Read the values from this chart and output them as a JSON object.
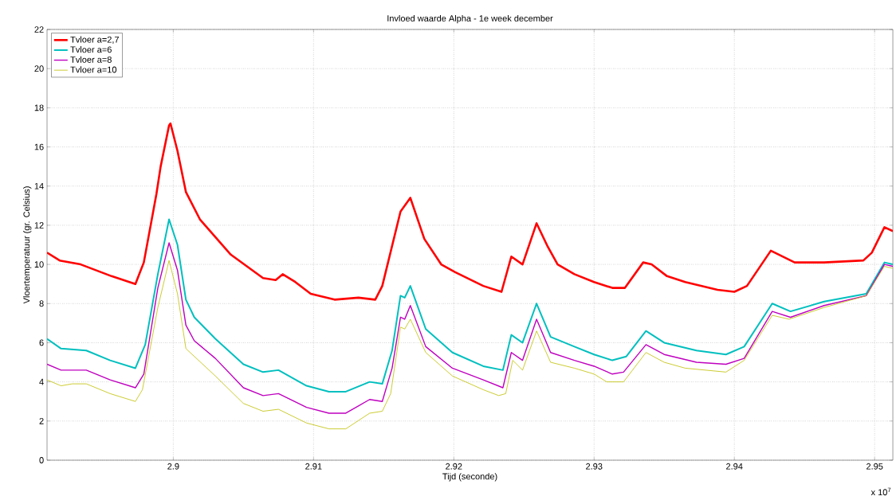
{
  "chart_data": {
    "type": "line",
    "title": "Invloed waarde Alpha - 1e week december",
    "xlabel": "Tijd (seconde)",
    "ylabel": "Vloertemperatuur (gr. Celsius)",
    "annotations": [
      "x 10$^{7}$"
    ],
    "xlim": [
      2.891,
      2.9513
    ],
    "ylim": [
      0,
      22
    ],
    "xticks": [
      2.9,
      2.91,
      2.92,
      2.93,
      2.94,
      2.95
    ],
    "yticks": [
      0,
      2,
      4,
      6,
      8,
      10,
      12,
      14,
      16,
      18,
      20,
      22
    ],
    "grid": true,
    "legend": "top left",
    "series": [
      {
        "name": "Tvloer a=2,7",
        "color": "#ff0000",
        "x": [
          2.891,
          2.8919,
          2.8934,
          2.8956,
          2.8973,
          2.8979,
          2.8988,
          2.8991,
          2.8997,
          2.8998,
          2.9003,
          2.9009,
          2.9019,
          2.9041,
          2.9064,
          2.9073,
          2.9078,
          2.9087,
          2.9098,
          2.9115,
          2.9132,
          2.9144,
          2.9149,
          2.9162,
          2.9169,
          2.9179,
          2.9191,
          2.9201,
          2.9221,
          2.9234,
          2.9241,
          2.9249,
          2.9259,
          2.9267,
          2.9274,
          2.9286,
          2.93,
          2.9313,
          2.9322,
          2.9335,
          2.9341,
          2.9352,
          2.9365,
          2.9388,
          2.94,
          2.9409,
          2.9426,
          2.9443,
          2.9464,
          2.9492,
          2.9498,
          2.9507,
          2.9513
        ],
        "values": [
          10.6,
          10.2,
          10.0,
          9.4,
          9.0,
          10.1,
          13.6,
          15.0,
          17.1,
          17.2,
          15.8,
          13.7,
          12.3,
          10.5,
          9.3,
          9.2,
          9.5,
          9.1,
          8.5,
          8.2,
          8.3,
          8.2,
          8.9,
          12.7,
          13.4,
          11.3,
          10.0,
          9.6,
          8.9,
          8.6,
          10.4,
          10.0,
          12.1,
          10.9,
          10.0,
          9.5,
          9.1,
          8.8,
          8.8,
          10.1,
          10.0,
          9.4,
          9.1,
          8.7,
          8.6,
          8.9,
          10.7,
          10.1,
          10.1,
          10.2,
          10.6,
          11.9,
          11.7
        ]
      },
      {
        "name": "Tvloer a=6",
        "color": "#00bfbf",
        "x": [
          2.891,
          2.892,
          2.8938,
          2.8955,
          2.8973,
          2.898,
          2.8989,
          2.8997,
          2.9003,
          2.9009,
          2.9015,
          2.903,
          2.905,
          2.9064,
          2.9075,
          2.9095,
          2.9111,
          2.9123,
          2.914,
          2.9149,
          2.9156,
          2.9162,
          2.9165,
          2.9169,
          2.918,
          2.9199,
          2.9221,
          2.9235,
          2.9241,
          2.9249,
          2.9259,
          2.9269,
          2.9286,
          2.93,
          2.9313,
          2.9323,
          2.9337,
          2.935,
          2.9373,
          2.9394,
          2.9407,
          2.9427,
          2.944,
          2.9464,
          2.9494,
          2.9507,
          2.9513
        ],
        "values": [
          6.2,
          5.7,
          5.6,
          5.1,
          4.7,
          5.9,
          9.5,
          12.3,
          11.0,
          8.2,
          7.3,
          6.2,
          4.9,
          4.5,
          4.6,
          3.8,
          3.5,
          3.5,
          4.0,
          3.9,
          5.6,
          8.4,
          8.3,
          8.9,
          6.7,
          5.5,
          4.8,
          4.6,
          6.4,
          6.0,
          8.0,
          6.3,
          5.8,
          5.4,
          5.1,
          5.3,
          6.6,
          6.0,
          5.6,
          5.4,
          5.8,
          8.0,
          7.6,
          8.1,
          8.5,
          10.1,
          10.0
        ]
      },
      {
        "name": "Tvloer a=8",
        "color": "#bf00bf",
        "x": [
          2.891,
          2.892,
          2.8938,
          2.8955,
          2.8973,
          2.8979,
          2.8989,
          2.8997,
          2.9003,
          2.9009,
          2.9015,
          2.903,
          2.905,
          2.9064,
          2.9075,
          2.9095,
          2.9111,
          2.9123,
          2.914,
          2.9149,
          2.9156,
          2.9162,
          2.9165,
          2.9169,
          2.918,
          2.9199,
          2.9221,
          2.9235,
          2.9241,
          2.9249,
          2.9259,
          2.9269,
          2.9286,
          2.93,
          2.9313,
          2.9321,
          2.9337,
          2.935,
          2.9373,
          2.9394,
          2.9407,
          2.9427,
          2.944,
          2.9464,
          2.9494,
          2.9507,
          2.9513
        ],
        "values": [
          4.9,
          4.6,
          4.6,
          4.1,
          3.7,
          4.4,
          8.8,
          11.1,
          9.7,
          6.9,
          6.1,
          5.2,
          3.7,
          3.3,
          3.4,
          2.7,
          2.4,
          2.4,
          3.1,
          3.0,
          4.7,
          7.3,
          7.2,
          7.9,
          5.8,
          4.7,
          4.1,
          3.7,
          5.5,
          5.1,
          7.2,
          5.5,
          5.1,
          4.8,
          4.4,
          4.5,
          5.9,
          5.4,
          5.0,
          4.9,
          5.2,
          7.6,
          7.3,
          7.9,
          8.4,
          10.0,
          9.9
        ]
      },
      {
        "name": "Tvloer a=10",
        "color": "#bfbf00",
        "x": [
          2.891,
          2.892,
          2.8928,
          2.8938,
          2.8955,
          2.8973,
          2.8978,
          2.8989,
          2.8997,
          2.9003,
          2.9009,
          2.903,
          2.905,
          2.9064,
          2.9075,
          2.9095,
          2.9111,
          2.9123,
          2.914,
          2.9149,
          2.9155,
          2.9162,
          2.9165,
          2.9169,
          2.918,
          2.9199,
          2.9221,
          2.9232,
          2.9237,
          2.9242,
          2.9249,
          2.9259,
          2.9269,
          2.9286,
          2.93,
          2.9309,
          2.9321,
          2.9337,
          2.935,
          2.9365,
          2.9394,
          2.9407,
          2.9427,
          2.9439,
          2.9464,
          2.9494,
          2.9507,
          2.9513
        ],
        "values": [
          4.1,
          3.8,
          3.9,
          3.9,
          3.4,
          3.0,
          3.6,
          7.8,
          10.2,
          8.5,
          5.7,
          4.3,
          2.9,
          2.5,
          2.6,
          1.9,
          1.6,
          1.6,
          2.4,
          2.5,
          3.4,
          6.8,
          6.7,
          7.2,
          5.5,
          4.3,
          3.6,
          3.3,
          3.4,
          5.1,
          4.6,
          6.6,
          5.0,
          4.7,
          4.4,
          4.0,
          4.0,
          5.5,
          5.0,
          4.7,
          4.5,
          5.1,
          7.4,
          7.2,
          7.8,
          8.4,
          9.9,
          9.8
        ]
      }
    ]
  }
}
